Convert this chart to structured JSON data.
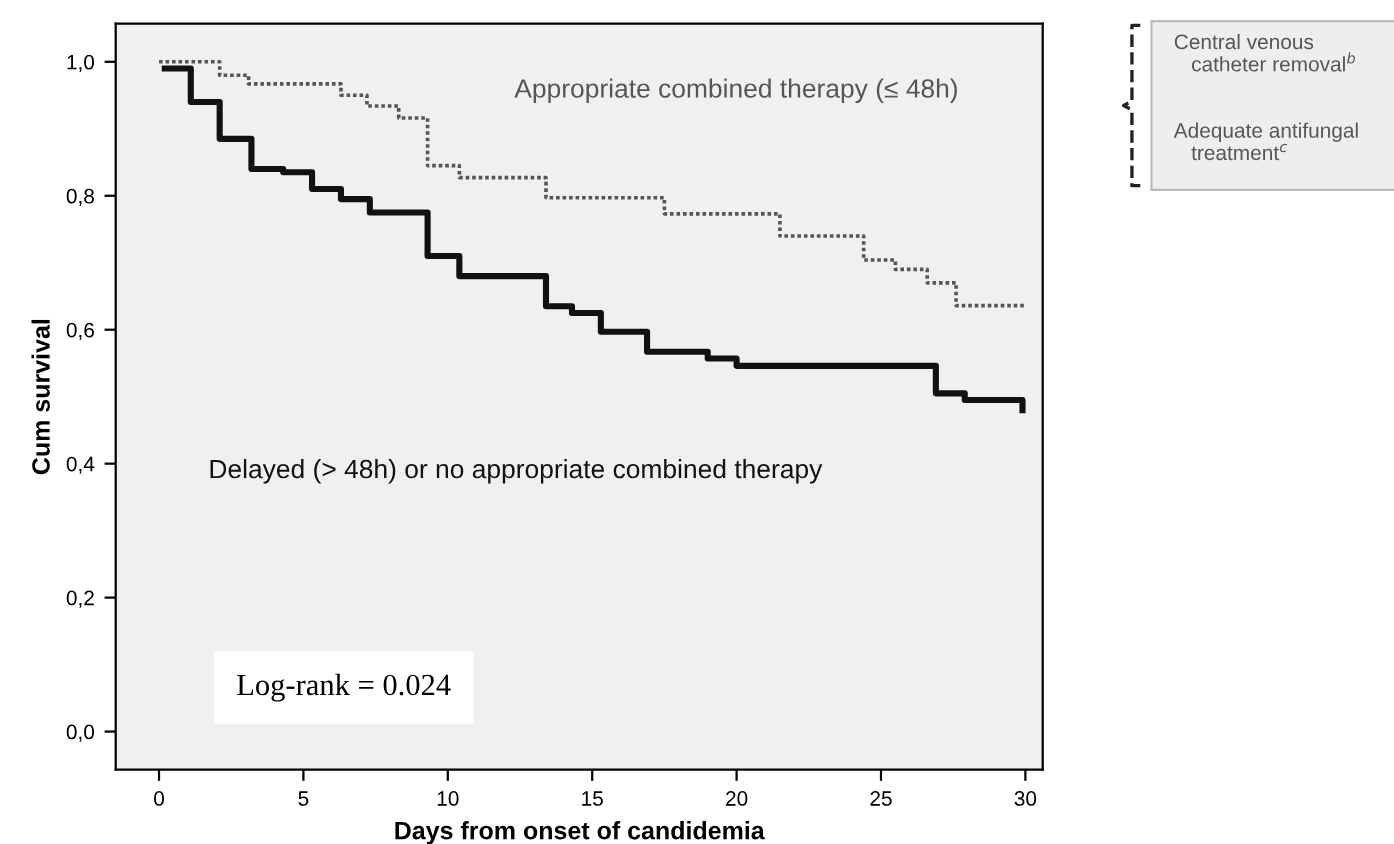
{
  "chart_data": {
    "type": "step",
    "xlabel": "Days from onset of candidemia",
    "ylabel": "Cum survival",
    "xlim": [
      -1.5,
      30.6
    ],
    "ylim": [
      -0.057,
      1.057
    ],
    "xticks": [
      0,
      5,
      10,
      15,
      20,
      25,
      30
    ],
    "yticks": [
      {
        "value": 0,
        "label": "0,0"
      },
      {
        "value": 0.2,
        "label": "0,2"
      },
      {
        "value": 0.4,
        "label": "0,4"
      },
      {
        "value": 0.6,
        "label": "0,6"
      },
      {
        "value": 0.8,
        "label": "0,8"
      },
      {
        "value": 1.0,
        "label": "1,0"
      }
    ],
    "grid": false,
    "legend": false,
    "series": [
      {
        "name": "Appropriate combined therapy (≤ 48h)",
        "color": "#555555",
        "line_style": "dotted",
        "x": [
          0,
          2.1,
          3.1,
          6.3,
          7.2,
          8.3,
          9.3,
          10.4,
          13.4,
          17.5,
          21.5,
          24.4,
          25.5,
          26.6,
          27.6,
          30
        ],
        "values": [
          1.0,
          0.98,
          0.967,
          0.95,
          0.934,
          0.916,
          0.845,
          0.827,
          0.797,
          0.773,
          0.74,
          0.704,
          0.69,
          0.67,
          0.636,
          0.636
        ]
      },
      {
        "name": "Delayed (> 48h) or no appropriate combined therapy",
        "color": "#111111",
        "line_style": "solid",
        "x": [
          0.2,
          1.1,
          2.1,
          3.2,
          4.3,
          5.3,
          6.3,
          7.3,
          9.3,
          10.4,
          13.4,
          14.3,
          15.3,
          16.9,
          19.0,
          20.0,
          26.9,
          27.9,
          29.9
        ],
        "values": [
          0.99,
          0.94,
          0.885,
          0.84,
          0.835,
          0.81,
          0.795,
          0.775,
          0.71,
          0.68,
          0.635,
          0.625,
          0.597,
          0.567,
          0.557,
          0.546,
          0.505,
          0.495,
          0.48
        ]
      }
    ],
    "annotations": [
      "Log-rank = 0.024",
      "Central venous\n   catheter removal$^{b}$",
      "Adequate antifungal\n   treatment$^{c}$"
    ]
  }
}
